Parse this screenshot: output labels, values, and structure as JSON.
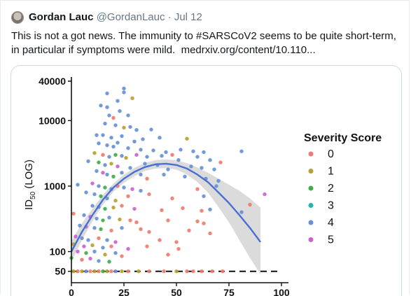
{
  "tweet": {
    "author_name": "Gordan Lauc",
    "handle": "@GordanLauc",
    "separator": "·",
    "date": "Jul 12",
    "text_line1": "This is not a got news. The immunity to #SARSCoV2 seems to be quite short-term,",
    "text_line2": "in particular if symptoms were mild.",
    "link": "medrxiv.org/content/10.110..."
  },
  "chart_data": {
    "type": "scatter",
    "title": "",
    "xlabel": "",
    "ylabel": "ID50 (LOG)",
    "ylabel_main": "ID",
    "ylabel_sub": "50",
    "ylabel_rest": " (LOG)",
    "y_scale": "log",
    "ylim": [
      45,
      40000
    ],
    "xlim": [
      0,
      100
    ],
    "y_ticks": [
      {
        "value": 50,
        "label": "50"
      },
      {
        "value": 100,
        "label": "100"
      },
      {
        "value": 1000,
        "label": "1000"
      },
      {
        "value": 10000,
        "label": "10000"
      },
      {
        "value": 40000,
        "label": "40000"
      }
    ],
    "x_ticks": [
      {
        "value": 0,
        "label": "0"
      },
      {
        "value": 25,
        "label": "25"
      },
      {
        "value": 50,
        "label": "50"
      },
      {
        "value": 75,
        "label": "75"
      },
      {
        "value": 100,
        "label": "100"
      }
    ],
    "grid": false,
    "legend": {
      "title": "Severity Score",
      "placement": "right",
      "entries": [
        {
          "label": "0",
          "color": "#f07b6f"
        },
        {
          "label": "1",
          "color": "#b8a02c"
        },
        {
          "label": "2",
          "color": "#3fae49"
        },
        {
          "label": "3",
          "color": "#1fb7b0"
        },
        {
          "label": "4",
          "color": "#6691d6"
        },
        {
          "label": "5",
          "color": "#cb63cf"
        }
      ]
    },
    "threshold_line": {
      "y": 50,
      "style": "dashed"
    },
    "fit": {
      "x": [
        0,
        5,
        10,
        15,
        20,
        25,
        30,
        35,
        40,
        45,
        50,
        55,
        60,
        65,
        70,
        75,
        80,
        85,
        90
      ],
      "y": [
        100,
        200,
        360,
        620,
        950,
        1300,
        1650,
        1950,
        2150,
        2200,
        2100,
        1850,
        1500,
        1150,
        800,
        550,
        360,
        230,
        140
      ],
      "band_low": [
        70,
        150,
        290,
        520,
        820,
        1120,
        1420,
        1700,
        1850,
        1880,
        1780,
        1500,
        1150,
        800,
        480,
        280,
        150,
        80,
        45
      ],
      "band_high": [
        145,
        270,
        450,
        740,
        1100,
        1500,
        1900,
        2250,
        2500,
        2560,
        2470,
        2250,
        1920,
        1600,
        1300,
        1050,
        850,
        650,
        470
      ]
    },
    "points": [
      {
        "x": 17,
        "y": 26000,
        "s": 4
      },
      {
        "x": 25,
        "y": 31000,
        "s": 4
      },
      {
        "x": 25,
        "y": 27000,
        "s": 4
      },
      {
        "x": 17,
        "y": 16000,
        "s": 4
      },
      {
        "x": 22,
        "y": 20000,
        "s": 4
      },
      {
        "x": 29,
        "y": 22000,
        "s": 1
      },
      {
        "x": 14,
        "y": 17000,
        "s": 4
      },
      {
        "x": 23,
        "y": 14000,
        "s": 4
      },
      {
        "x": 18,
        "y": 12000,
        "s": 4
      },
      {
        "x": 20,
        "y": 11000,
        "s": 0
      },
      {
        "x": 27,
        "y": 12000,
        "s": 4
      },
      {
        "x": 16,
        "y": 9000,
        "s": 4
      },
      {
        "x": 21,
        "y": 8500,
        "s": 4
      },
      {
        "x": 25,
        "y": 7800,
        "s": 1
      },
      {
        "x": 28,
        "y": 8000,
        "s": 4
      },
      {
        "x": 31,
        "y": 7200,
        "s": 4
      },
      {
        "x": 38,
        "y": 7300,
        "s": 4
      },
      {
        "x": 12,
        "y": 6000,
        "s": 4
      },
      {
        "x": 15,
        "y": 6000,
        "s": 4
      },
      {
        "x": 19,
        "y": 5500,
        "s": 4
      },
      {
        "x": 24,
        "y": 5800,
        "s": 4
      },
      {
        "x": 30,
        "y": 4800,
        "s": 4
      },
      {
        "x": 34,
        "y": 5200,
        "s": 4
      },
      {
        "x": 42,
        "y": 5500,
        "s": 4
      },
      {
        "x": 55,
        "y": 5300,
        "s": 1
      },
      {
        "x": 13,
        "y": 4500,
        "s": 4
      },
      {
        "x": 17,
        "y": 4200,
        "s": 4
      },
      {
        "x": 20,
        "y": 4000,
        "s": 4
      },
      {
        "x": 22,
        "y": 4600,
        "s": 4
      },
      {
        "x": 27,
        "y": 3800,
        "s": 4
      },
      {
        "x": 33,
        "y": 3600,
        "s": 4
      },
      {
        "x": 39,
        "y": 3500,
        "s": 4
      },
      {
        "x": 45,
        "y": 3300,
        "s": 4
      },
      {
        "x": 52,
        "y": 3600,
        "s": 4
      },
      {
        "x": 58,
        "y": 3400,
        "s": 4
      },
      {
        "x": 63,
        "y": 3300,
        "s": 4
      },
      {
        "x": 81,
        "y": 3400,
        "s": 4
      },
      {
        "x": 11,
        "y": 3200,
        "s": 1
      },
      {
        "x": 15,
        "y": 3000,
        "s": 0
      },
      {
        "x": 18,
        "y": 2800,
        "s": 4
      },
      {
        "x": 21,
        "y": 3000,
        "s": 2
      },
      {
        "x": 24,
        "y": 2900,
        "s": 4
      },
      {
        "x": 26,
        "y": 2700,
        "s": 1
      },
      {
        "x": 31,
        "y": 3000,
        "s": 5
      },
      {
        "x": 36,
        "y": 2800,
        "s": 4
      },
      {
        "x": 43,
        "y": 2900,
        "s": 4
      },
      {
        "x": 48,
        "y": 3000,
        "s": 0
      },
      {
        "x": 51,
        "y": 2500,
        "s": 4
      },
      {
        "x": 60,
        "y": 2800,
        "s": 4
      },
      {
        "x": 66,
        "y": 2500,
        "s": 4
      },
      {
        "x": 71,
        "y": 2300,
        "s": 0
      },
      {
        "x": 8,
        "y": 2400,
        "s": 4
      },
      {
        "x": 13,
        "y": 2300,
        "s": 2
      },
      {
        "x": 16,
        "y": 2100,
        "s": 4
      },
      {
        "x": 19,
        "y": 2200,
        "s": 1
      },
      {
        "x": 22,
        "y": 2000,
        "s": 5
      },
      {
        "x": 28,
        "y": 1900,
        "s": 4
      },
      {
        "x": 35,
        "y": 2200,
        "s": 4
      },
      {
        "x": 41,
        "y": 2100,
        "s": 4
      },
      {
        "x": 46,
        "y": 1800,
        "s": 4
      },
      {
        "x": 57,
        "y": 2000,
        "s": 4
      },
      {
        "x": 62,
        "y": 1900,
        "s": 4
      },
      {
        "x": 68,
        "y": 1800,
        "s": 4
      },
      {
        "x": 12,
        "y": 1700,
        "s": 4
      },
      {
        "x": 15,
        "y": 1600,
        "s": 5
      },
      {
        "x": 17,
        "y": 1500,
        "s": 4
      },
      {
        "x": 20,
        "y": 1400,
        "s": 2
      },
      {
        "x": 24,
        "y": 1600,
        "s": 4
      },
      {
        "x": 33,
        "y": 1500,
        "s": 4
      },
      {
        "x": 36,
        "y": 1300,
        "s": 0
      },
      {
        "x": 44,
        "y": 1500,
        "s": 4
      },
      {
        "x": 54,
        "y": 1400,
        "s": 4
      },
      {
        "x": 64,
        "y": 1300,
        "s": 4
      },
      {
        "x": 70,
        "y": 1200,
        "s": 4
      },
      {
        "x": 3,
        "y": 1050,
        "s": 4
      },
      {
        "x": 10,
        "y": 1100,
        "s": 5
      },
      {
        "x": 13,
        "y": 1000,
        "s": 4
      },
      {
        "x": 16,
        "y": 950,
        "s": 2
      },
      {
        "x": 19,
        "y": 900,
        "s": 4
      },
      {
        "x": 22,
        "y": 1000,
        "s": 0
      },
      {
        "x": 25,
        "y": 950,
        "s": 4
      },
      {
        "x": 29,
        "y": 900,
        "s": 5
      },
      {
        "x": 33,
        "y": 850,
        "s": 4
      },
      {
        "x": 60,
        "y": 900,
        "s": 0
      },
      {
        "x": 69,
        "y": 1000,
        "s": 4
      },
      {
        "x": 92,
        "y": 750,
        "s": 5
      },
      {
        "x": 7,
        "y": 800,
        "s": 4
      },
      {
        "x": 11,
        "y": 750,
        "s": 4
      },
      {
        "x": 14,
        "y": 700,
        "s": 2
      },
      {
        "x": 17,
        "y": 650,
        "s": 4
      },
      {
        "x": 21,
        "y": 600,
        "s": 1
      },
      {
        "x": 27,
        "y": 700,
        "s": 0
      },
      {
        "x": 37,
        "y": 750,
        "s": 0
      },
      {
        "x": 48,
        "y": 650,
        "s": 0
      },
      {
        "x": 63,
        "y": 700,
        "s": 4
      },
      {
        "x": 85,
        "y": 520,
        "s": 0
      },
      {
        "x": 10,
        "y": 500,
        "s": 4
      },
      {
        "x": 13,
        "y": 480,
        "s": 4
      },
      {
        "x": 16,
        "y": 450,
        "s": 2
      },
      {
        "x": 20,
        "y": 470,
        "s": 1
      },
      {
        "x": 24,
        "y": 500,
        "s": 0
      },
      {
        "x": 30,
        "y": 450,
        "s": 5
      },
      {
        "x": 43,
        "y": 430,
        "s": 0
      },
      {
        "x": 53,
        "y": 460,
        "s": 0
      },
      {
        "x": 62,
        "y": 420,
        "s": 0
      },
      {
        "x": 66,
        "y": 440,
        "s": 4
      },
      {
        "x": 81,
        "y": 400,
        "s": 4
      },
      {
        "x": 1,
        "y": 380,
        "s": 0
      },
      {
        "x": 6,
        "y": 360,
        "s": 4
      },
      {
        "x": 9,
        "y": 340,
        "s": 5
      },
      {
        "x": 12,
        "y": 320,
        "s": 4
      },
      {
        "x": 15,
        "y": 300,
        "s": 2
      },
      {
        "x": 18,
        "y": 330,
        "s": 4
      },
      {
        "x": 23,
        "y": 310,
        "s": 1
      },
      {
        "x": 28,
        "y": 300,
        "s": 0
      },
      {
        "x": 31,
        "y": 280,
        "s": 0
      },
      {
        "x": 46,
        "y": 300,
        "s": 0
      },
      {
        "x": 60,
        "y": 290,
        "s": 0
      },
      {
        "x": 63,
        "y": 270,
        "s": 0
      },
      {
        "x": 4,
        "y": 250,
        "s": 4
      },
      {
        "x": 7,
        "y": 240,
        "s": 5
      },
      {
        "x": 11,
        "y": 230,
        "s": 4
      },
      {
        "x": 14,
        "y": 220,
        "s": 2
      },
      {
        "x": 19,
        "y": 210,
        "s": 0
      },
      {
        "x": 24,
        "y": 230,
        "s": 4
      },
      {
        "x": 33,
        "y": 220,
        "s": 0
      },
      {
        "x": 37,
        "y": 200,
        "s": 0
      },
      {
        "x": 56,
        "y": 210,
        "s": 0
      },
      {
        "x": 66,
        "y": 190,
        "s": 0
      },
      {
        "x": 2,
        "y": 170,
        "s": 5
      },
      {
        "x": 5,
        "y": 160,
        "s": 4
      },
      {
        "x": 8,
        "y": 150,
        "s": 4
      },
      {
        "x": 13,
        "y": 160,
        "s": 0
      },
      {
        "x": 17,
        "y": 150,
        "s": 4
      },
      {
        "x": 21,
        "y": 140,
        "s": 5
      },
      {
        "x": 42,
        "y": 150,
        "s": 0
      },
      {
        "x": 50,
        "y": 140,
        "s": 0
      },
      {
        "x": 1,
        "y": 130,
        "s": 1
      },
      {
        "x": 6,
        "y": 120,
        "s": 5
      },
      {
        "x": 10,
        "y": 125,
        "s": 1
      },
      {
        "x": 15,
        "y": 115,
        "s": 4
      },
      {
        "x": 19,
        "y": 120,
        "s": 0
      },
      {
        "x": 27,
        "y": 110,
        "s": 5
      },
      {
        "x": 36,
        "y": 120,
        "s": 0
      },
      {
        "x": 51,
        "y": 110,
        "s": 0
      },
      {
        "x": 3,
        "y": 100,
        "s": 5
      },
      {
        "x": 7,
        "y": 95,
        "s": 2
      },
      {
        "x": 11,
        "y": 100,
        "s": 4
      },
      {
        "x": 16,
        "y": 90,
        "s": 1
      },
      {
        "x": 21,
        "y": 95,
        "s": 4
      },
      {
        "x": 24,
        "y": 85,
        "s": 0
      },
      {
        "x": 46,
        "y": 90,
        "s": 0
      },
      {
        "x": 0,
        "y": 80,
        "s": 2
      },
      {
        "x": 5,
        "y": 75,
        "s": 0
      },
      {
        "x": 9,
        "y": 78,
        "s": 5
      },
      {
        "x": 13,
        "y": 72,
        "s": 4
      },
      {
        "x": 18,
        "y": 70,
        "s": 2
      },
      {
        "x": 1,
        "y": 50,
        "s": 1
      },
      {
        "x": 3,
        "y": 50,
        "s": 0
      },
      {
        "x": 5,
        "y": 50,
        "s": 1
      },
      {
        "x": 7,
        "y": 50,
        "s": 4
      },
      {
        "x": 9,
        "y": 50,
        "s": 0
      },
      {
        "x": 11,
        "y": 50,
        "s": 1
      },
      {
        "x": 13,
        "y": 50,
        "s": 0
      },
      {
        "x": 15,
        "y": 50,
        "s": 2
      },
      {
        "x": 17,
        "y": 50,
        "s": 1
      },
      {
        "x": 19,
        "y": 50,
        "s": 0
      },
      {
        "x": 21,
        "y": 50,
        "s": 4
      },
      {
        "x": 24,
        "y": 50,
        "s": 1
      },
      {
        "x": 27,
        "y": 50,
        "s": 0
      },
      {
        "x": 32,
        "y": 50,
        "s": 1
      },
      {
        "x": 37,
        "y": 50,
        "s": 0
      },
      {
        "x": 44,
        "y": 50,
        "s": 0
      },
      {
        "x": 50,
        "y": 50,
        "s": 1
      },
      {
        "x": 55,
        "y": 50,
        "s": 0
      },
      {
        "x": 58,
        "y": 50,
        "s": 0
      },
      {
        "x": 62,
        "y": 50,
        "s": 0
      },
      {
        "x": 67,
        "y": 50,
        "s": 0
      },
      {
        "x": 72,
        "y": 50,
        "s": 0
      }
    ]
  }
}
